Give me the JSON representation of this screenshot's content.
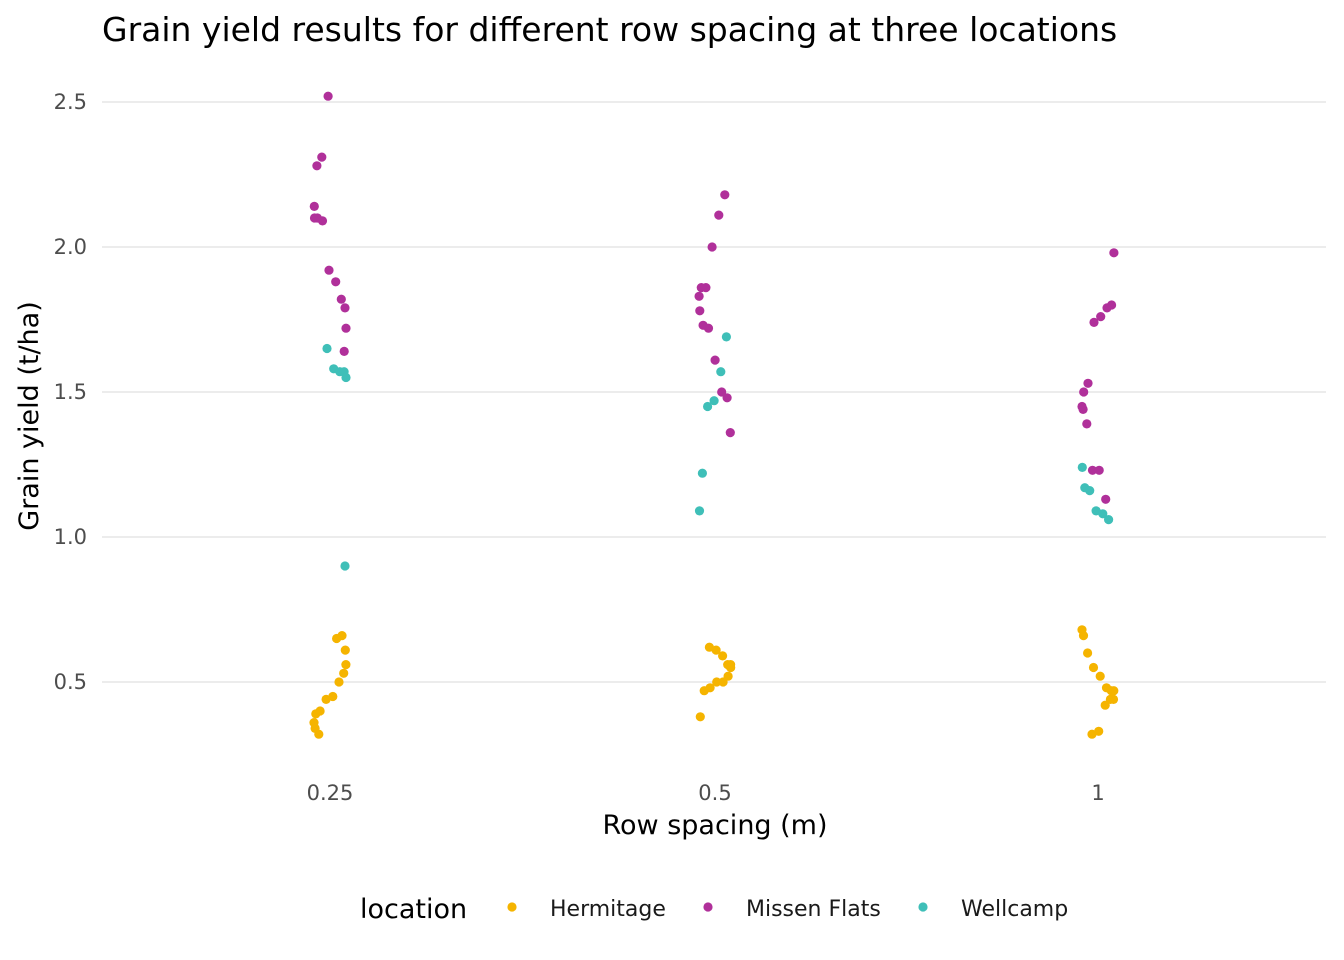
{
  "chart_data": {
    "type": "scatter",
    "title": "Grain yield results for different row spacing at three locations",
    "xlabel": "Row spacing (m)",
    "ylabel": "Grain yield (t/ha)",
    "categories": [
      "0.25",
      "0.5",
      "1"
    ],
    "ylim": [
      0.22,
      2.6
    ],
    "yticks": [
      0.5,
      1.0,
      1.5,
      2.0,
      2.5
    ],
    "ytick_labels": [
      "0.5",
      "1.0",
      "1.5",
      "2.0",
      "2.5"
    ],
    "grid": true,
    "legend": {
      "title": "location",
      "placement": "bottom"
    },
    "series": [
      {
        "name": "Hermitage",
        "color": "#F5B400",
        "points": [
          {
            "x": "0.25",
            "y": 0.65
          },
          {
            "x": "0.25",
            "y": 0.66
          },
          {
            "x": "0.25",
            "y": 0.61
          },
          {
            "x": "0.25",
            "y": 0.56
          },
          {
            "x": "0.25",
            "y": 0.53
          },
          {
            "x": "0.25",
            "y": 0.5
          },
          {
            "x": "0.25",
            "y": 0.45
          },
          {
            "x": "0.25",
            "y": 0.44
          },
          {
            "x": "0.25",
            "y": 0.4
          },
          {
            "x": "0.25",
            "y": 0.39
          },
          {
            "x": "0.25",
            "y": 0.36
          },
          {
            "x": "0.25",
            "y": 0.34
          },
          {
            "x": "0.25",
            "y": 0.32
          },
          {
            "x": "0.5",
            "y": 0.62
          },
          {
            "x": "0.5",
            "y": 0.61
          },
          {
            "x": "0.5",
            "y": 0.59
          },
          {
            "x": "0.5",
            "y": 0.56
          },
          {
            "x": "0.5",
            "y": 0.56
          },
          {
            "x": "0.5",
            "y": 0.55
          },
          {
            "x": "0.5",
            "y": 0.52
          },
          {
            "x": "0.5",
            "y": 0.5
          },
          {
            "x": "0.5",
            "y": 0.5
          },
          {
            "x": "0.5",
            "y": 0.48
          },
          {
            "x": "0.5",
            "y": 0.47
          },
          {
            "x": "0.5",
            "y": 0.38
          },
          {
            "x": "1",
            "y": 0.68
          },
          {
            "x": "1",
            "y": 0.66
          },
          {
            "x": "1",
            "y": 0.6
          },
          {
            "x": "1",
            "y": 0.55
          },
          {
            "x": "1",
            "y": 0.52
          },
          {
            "x": "1",
            "y": 0.48
          },
          {
            "x": "1",
            "y": 0.47
          },
          {
            "x": "1",
            "y": 0.47
          },
          {
            "x": "1",
            "y": 0.44
          },
          {
            "x": "1",
            "y": 0.44
          },
          {
            "x": "1",
            "y": 0.42
          },
          {
            "x": "1",
            "y": 0.33
          },
          {
            "x": "1",
            "y": 0.32
          }
        ]
      },
      {
        "name": "Missen Flats",
        "color": "#B0309A",
        "points": [
          {
            "x": "0.25",
            "y": 2.52
          },
          {
            "x": "0.25",
            "y": 2.31
          },
          {
            "x": "0.25",
            "y": 2.28
          },
          {
            "x": "0.25",
            "y": 2.14
          },
          {
            "x": "0.25",
            "y": 2.1
          },
          {
            "x": "0.25",
            "y": 2.1
          },
          {
            "x": "0.25",
            "y": 2.09
          },
          {
            "x": "0.25",
            "y": 1.92
          },
          {
            "x": "0.25",
            "y": 1.88
          },
          {
            "x": "0.25",
            "y": 1.82
          },
          {
            "x": "0.25",
            "y": 1.79
          },
          {
            "x": "0.25",
            "y": 1.72
          },
          {
            "x": "0.25",
            "y": 1.64
          },
          {
            "x": "0.5",
            "y": 2.18
          },
          {
            "x": "0.5",
            "y": 2.11
          },
          {
            "x": "0.5",
            "y": 2.0
          },
          {
            "x": "0.5",
            "y": 1.86
          },
          {
            "x": "0.5",
            "y": 1.86
          },
          {
            "x": "0.5",
            "y": 1.83
          },
          {
            "x": "0.5",
            "y": 1.78
          },
          {
            "x": "0.5",
            "y": 1.73
          },
          {
            "x": "0.5",
            "y": 1.72
          },
          {
            "x": "0.5",
            "y": 1.61
          },
          {
            "x": "0.5",
            "y": 1.5
          },
          {
            "x": "0.5",
            "y": 1.48
          },
          {
            "x": "0.5",
            "y": 1.36
          },
          {
            "x": "1",
            "y": 1.98
          },
          {
            "x": "1",
            "y": 1.8
          },
          {
            "x": "1",
            "y": 1.79
          },
          {
            "x": "1",
            "y": 1.76
          },
          {
            "x": "1",
            "y": 1.74
          },
          {
            "x": "1",
            "y": 1.53
          },
          {
            "x": "1",
            "y": 1.5
          },
          {
            "x": "1",
            "y": 1.45
          },
          {
            "x": "1",
            "y": 1.44
          },
          {
            "x": "1",
            "y": 1.39
          },
          {
            "x": "1",
            "y": 1.23
          },
          {
            "x": "1",
            "y": 1.23
          },
          {
            "x": "1",
            "y": 1.13
          }
        ]
      },
      {
        "name": "Wellcamp",
        "color": "#3FBFB8",
        "points": [
          {
            "x": "0.25",
            "y": 1.65
          },
          {
            "x": "0.25",
            "y": 1.58
          },
          {
            "x": "0.25",
            "y": 1.57
          },
          {
            "x": "0.25",
            "y": 1.57
          },
          {
            "x": "0.25",
            "y": 1.55
          },
          {
            "x": "0.25",
            "y": 0.9
          },
          {
            "x": "0.5",
            "y": 1.69
          },
          {
            "x": "0.5",
            "y": 1.57
          },
          {
            "x": "0.5",
            "y": 1.47
          },
          {
            "x": "0.5",
            "y": 1.45
          },
          {
            "x": "0.5",
            "y": 1.22
          },
          {
            "x": "0.5",
            "y": 1.09
          },
          {
            "x": "1",
            "y": 1.24
          },
          {
            "x": "1",
            "y": 1.17
          },
          {
            "x": "1",
            "y": 1.16
          },
          {
            "x": "1",
            "y": 1.09
          },
          {
            "x": "1",
            "y": 1.08
          },
          {
            "x": "1",
            "y": 1.06
          }
        ]
      }
    ]
  }
}
